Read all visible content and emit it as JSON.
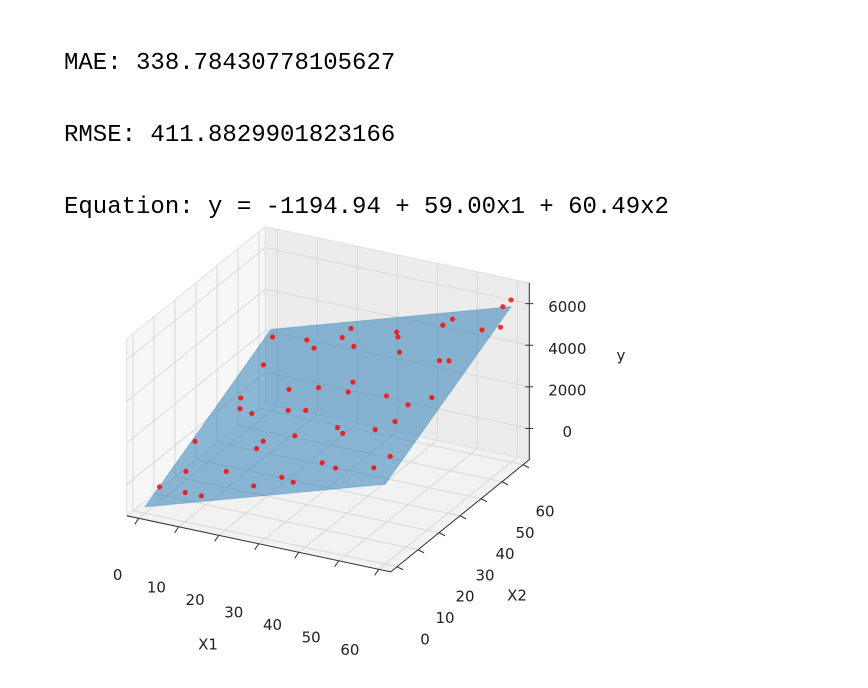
{
  "output_lines": [
    "MAE: 338.78430778105627",
    "RMSE: 411.8829901823166",
    "Equation: y = -1194.94 + 59.00x1 + 60.49x2"
  ],
  "chart_data": {
    "type": "scatter3d",
    "x_label": "X1",
    "y_label": "X2",
    "z_label": "y",
    "xlim": [
      -3,
      63
    ],
    "ylim": [
      -3,
      63
    ],
    "zlim": [
      -1500,
      7000
    ],
    "xticks": [
      0,
      10,
      20,
      30,
      40,
      50,
      60
    ],
    "yticks": [
      0,
      10,
      20,
      30,
      40,
      50,
      60
    ],
    "zticks": [
      0,
      2000,
      4000,
      6000
    ],
    "grid": true,
    "surface": {
      "color": "#1f77b4",
      "x": [
        0,
        60
      ],
      "y": [
        0,
        60
      ],
      "z": [
        [
          -1195,
          2435
        ],
        [
          2345,
          5974
        ]
      ]
    },
    "series": [
      {
        "color": "#ff0000",
        "x": [
          5,
          12,
          20,
          30,
          45,
          55,
          8,
          15,
          25,
          35,
          40,
          50,
          58,
          3,
          10,
          22,
          33,
          48,
          60,
          59,
          18,
          28,
          38,
          52,
          6,
          14,
          42,
          27,
          55,
          2,
          36,
          20,
          46,
          12,
          31,
          57,
          9,
          24,
          44,
          37,
          16,
          50,
          4,
          26,
          53,
          40,
          19,
          34,
          60,
          1
        ],
        "y": [
          10,
          4,
          15,
          8,
          5,
          12,
          30,
          40,
          35,
          25,
          45,
          30,
          50,
          55,
          58,
          52,
          57,
          55,
          60,
          58,
          22,
          18,
          12,
          20,
          45,
          12,
          35,
          48,
          40,
          20,
          2,
          60,
          22,
          28,
          40,
          28,
          2,
          6,
          58,
          50,
          50,
          45,
          38,
          27,
          8,
          18,
          32,
          32,
          55,
          5
        ],
        "z": [
          -100,
          -500,
          1200,
          800,
          2100,
          2500,
          1400,
          1800,
          2700,
          2000,
          4200,
          3300,
          5600,
          2600,
          2500,
          3600,
          3900,
          5300,
          6300,
          6100,
          900,
          1900,
          1500,
          3400,
          2200,
          100,
          3000,
          3700,
          4800,
          400,
          1300,
          3300,
          2600,
          1500,
          2800,
          4100,
          -300,
          300,
          4600,
          4400,
          3000,
          4200,
          1100,
          2300,
          2200,
          2500,
          1600,
          3100,
          5400,
          -600
        ]
      }
    ]
  }
}
